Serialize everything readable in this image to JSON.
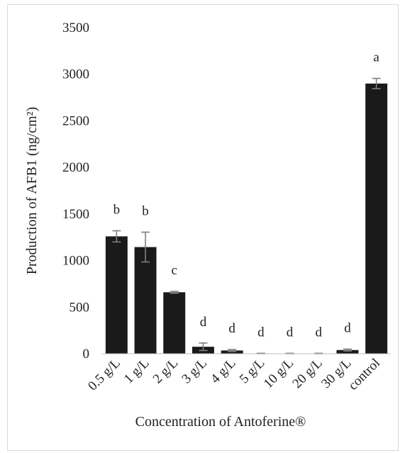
{
  "chart_data": {
    "type": "bar",
    "title": "",
    "xlabel": "Concentration of Antoferine®",
    "ylabel": "Production of AFB1 (ng/cm²)",
    "ylim": [
      0,
      3500
    ],
    "yticks": [
      0,
      500,
      1000,
      1500,
      2000,
      2500,
      3000,
      3500
    ],
    "grid": false,
    "bar_color": "#1a1a1a",
    "categories": [
      "0.5 g/L",
      "1 g/L",
      "2 g/L",
      "3 g/L",
      "4 g/L",
      "5 g/L",
      "10 g/L",
      "20 g/L",
      "30 g/L",
      "control"
    ],
    "values": [
      1260,
      1145,
      660,
      75,
      35,
      3,
      3,
      3,
      40,
      2900
    ],
    "errors": [
      60,
      160,
      10,
      40,
      10,
      2,
      2,
      2,
      10,
      55
    ],
    "letters": [
      "b",
      "b",
      "c",
      "d",
      "d",
      "d",
      "d",
      "d",
      "d",
      "a"
    ]
  }
}
